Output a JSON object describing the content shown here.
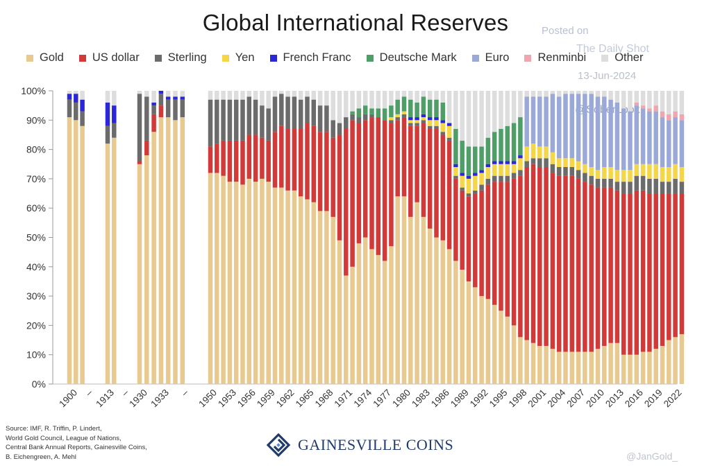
{
  "header": {
    "title": "Global International Reserves"
  },
  "watermark": {
    "posted": "Posted on",
    "site": "The Daily Shot",
    "date": "13-Jun-2024",
    "handle": "@SoberLook"
  },
  "footer": {
    "source_lines": [
      "Source: IMF, R. Triffin, P. Lindert,",
      "World Gold Council, League of Nations,",
      "Central Bank Annual Reports, Gainesville Coins,",
      "B. Eichengreen, A. Mehl"
    ],
    "brand": "GAINESVILLE COINS",
    "credit": "@JanGold_"
  },
  "colors": {
    "Gold": "#e8c98f",
    "US dollar": "#d23a3a",
    "Sterling": "#6b6b6b",
    "Yen": "#f4d648",
    "French Franc": "#2c27d6",
    "Deutsche Mark": "#4f9e68",
    "Euro": "#9aa9d8",
    "Renminbi": "#f0a6ae",
    "Other": "#dddddd",
    "brand": "#1f3a6d"
  },
  "chart_data": {
    "type": "bar",
    "stacked": true,
    "title": "Global International Reserves",
    "xlabel": "",
    "ylabel": "",
    "ylim": [
      0,
      100
    ],
    "y_ticks": [
      "0%",
      "10%",
      "20%",
      "30%",
      "40%",
      "50%",
      "60%",
      "70%",
      "80%",
      "90%",
      "100%"
    ],
    "x_tick_labels": [
      "1900",
      "–",
      "1913",
      "–",
      "1930",
      "1933",
      "–",
      "1950",
      "1953",
      "1956",
      "1959",
      "1962",
      "1965",
      "1968",
      "1971",
      "1974",
      "1977",
      "1980",
      "1983",
      "1986",
      "1989",
      "1992",
      "1995",
      "1998",
      "2001",
      "2004",
      "2007",
      "2010",
      "2013",
      "2016",
      "2019",
      "2022"
    ],
    "legend": [
      "Gold",
      "US dollar",
      "Sterling",
      "Yen",
      "French Franc",
      "Deutsche Mark",
      "Euro",
      "Renminbi",
      "Other"
    ],
    "legend_position": "top",
    "categories": [
      "1899",
      "1900",
      "1901",
      "1912",
      "1913",
      "1929",
      "1930",
      "1931",
      "1932",
      "1933",
      "1934",
      "1935",
      "1950",
      "1951",
      "1952",
      "1953",
      "1954",
      "1955",
      "1956",
      "1957",
      "1958",
      "1959",
      "1960",
      "1961",
      "1962",
      "1963",
      "1964",
      "1965",
      "1966",
      "1967",
      "1968",
      "1969",
      "1970",
      "1971",
      "1972",
      "1973",
      "1974",
      "1975",
      "1976",
      "1977",
      "1978",
      "1979",
      "1980",
      "1981",
      "1982",
      "1983",
      "1984",
      "1985",
      "1986",
      "1987",
      "1988",
      "1989",
      "1990",
      "1991",
      "1992",
      "1993",
      "1994",
      "1995",
      "1996",
      "1997",
      "1998",
      "1999",
      "2000",
      "2001",
      "2002",
      "2003",
      "2004",
      "2005",
      "2006",
      "2007",
      "2008",
      "2009",
      "2010",
      "2011",
      "2012",
      "2013",
      "2014",
      "2015",
      "2016",
      "2017",
      "2018",
      "2019",
      "2020",
      "2021",
      "2022",
      "2023"
    ],
    "series": [
      {
        "name": "Gold",
        "values": [
          91,
          90,
          88,
          82,
          84,
          75,
          78,
          86,
          91,
          91,
          90,
          91,
          72,
          72,
          71,
          69,
          69,
          68,
          70,
          69,
          70,
          69,
          67,
          67,
          66,
          66,
          64,
          63,
          62,
          59,
          59,
          57,
          49,
          37,
          40,
          48,
          50,
          46,
          44,
          42,
          47,
          64,
          64,
          57,
          62,
          57,
          53,
          50,
          49,
          46,
          42,
          39,
          35,
          33,
          30,
          29,
          27,
          25,
          23,
          20,
          16,
          15,
          14,
          13,
          13,
          12,
          11,
          11,
          11,
          11,
          11,
          11,
          12,
          13,
          14,
          14,
          10,
          10,
          10,
          11,
          11,
          12,
          13,
          15,
          16,
          17
        ]
      },
      {
        "name": "US dollar",
        "values": [
          0,
          0,
          0,
          0,
          0,
          1,
          5,
          6,
          4,
          0,
          0,
          0,
          9,
          10,
          12,
          14,
          14,
          15,
          15,
          16,
          14,
          14,
          19,
          21,
          21,
          21,
          23,
          26,
          26,
          27,
          27,
          27,
          36,
          50,
          50,
          41,
          40,
          45,
          47,
          48,
          42,
          26,
          27,
          31,
          26,
          32,
          34,
          37,
          36,
          37,
          28,
          27,
          29,
          32,
          36,
          39,
          42,
          44,
          46,
          50,
          55,
          59,
          61,
          61,
          61,
          60,
          60,
          60,
          60,
          59,
          58,
          57,
          55,
          54,
          53,
          52,
          55,
          55,
          56,
          55,
          54,
          53,
          52,
          50,
          49,
          48
        ]
      },
      {
        "name": "Sterling",
        "values": [
          6,
          6,
          5,
          6,
          5,
          23,
          15,
          3,
          4,
          6,
          7,
          6,
          16,
          15,
          14,
          14,
          14,
          14,
          13,
          12,
          11,
          11,
          12,
          11,
          11,
          11,
          10,
          9,
          9,
          9,
          9,
          6,
          4,
          4,
          2,
          2,
          2,
          1,
          0,
          0,
          1,
          1,
          1,
          1,
          1,
          1,
          1,
          1,
          1,
          1,
          1,
          1,
          1,
          1,
          2,
          2,
          2,
          2,
          2,
          2,
          2,
          2,
          2,
          3,
          3,
          3,
          3,
          3,
          3,
          3,
          3,
          3,
          3,
          3,
          3,
          3,
          4,
          4,
          5,
          5,
          5,
          5,
          4,
          4,
          5,
          4
        ]
      },
      {
        "name": "Yen",
        "values": [
          0,
          0,
          0,
          0,
          0,
          0,
          0,
          0,
          0,
          0,
          0,
          0,
          0,
          0,
          0,
          0,
          0,
          0,
          0,
          0,
          0,
          0,
          0,
          0,
          0,
          0,
          0,
          0,
          0,
          0,
          0,
          0,
          0,
          0,
          0,
          0,
          0,
          0,
          0,
          0,
          1,
          1,
          1,
          1,
          1,
          1,
          2,
          2,
          3,
          4,
          3,
          4,
          5,
          5,
          4,
          4,
          4,
          4,
          4,
          3,
          4,
          5,
          5,
          4,
          4,
          4,
          3,
          3,
          3,
          3,
          3,
          3,
          3,
          4,
          4,
          4,
          4,
          4,
          4,
          4,
          5,
          5,
          5,
          5,
          5,
          5
        ]
      },
      {
        "name": "French Franc",
        "values": [
          2,
          3,
          4,
          8,
          6,
          0,
          0,
          1,
          1,
          1,
          1,
          1,
          0,
          0,
          0,
          0,
          0,
          0,
          0,
          0,
          0,
          0,
          0,
          0,
          0,
          0,
          0,
          0,
          0,
          0,
          0,
          0,
          0,
          0,
          0,
          0,
          0,
          0,
          0,
          0,
          0,
          0,
          0,
          1,
          1,
          1,
          1,
          1,
          1,
          1,
          1,
          1,
          1,
          1,
          1,
          1,
          1,
          1,
          1,
          1,
          1,
          0,
          0,
          0,
          0,
          0,
          0,
          0,
          0,
          0,
          0,
          0,
          0,
          0,
          0,
          0,
          0,
          0,
          0,
          0,
          0,
          0,
          0,
          0,
          0,
          0
        ]
      },
      {
        "name": "Deutsche Mark",
        "values": [
          0,
          0,
          0,
          0,
          0,
          0,
          0,
          0,
          0,
          0,
          0,
          0,
          0,
          0,
          0,
          0,
          0,
          0,
          0,
          0,
          0,
          0,
          0,
          0,
          0,
          0,
          0,
          0,
          0,
          0,
          0,
          0,
          0,
          0,
          1,
          3,
          3,
          2,
          3,
          4,
          4,
          5,
          5,
          6,
          5,
          6,
          6,
          6,
          6,
          0,
          12,
          11,
          10,
          9,
          8,
          9,
          10,
          11,
          12,
          13,
          13,
          0,
          0,
          0,
          0,
          0,
          0,
          0,
          0,
          0,
          0,
          0,
          0,
          0,
          0,
          0,
          0,
          0,
          0,
          0,
          0,
          0,
          0,
          0,
          0,
          0
        ]
      },
      {
        "name": "Euro",
        "values": [
          0,
          0,
          0,
          0,
          0,
          0,
          0,
          0,
          0,
          0,
          0,
          0,
          0,
          0,
          0,
          0,
          0,
          0,
          0,
          0,
          0,
          0,
          0,
          0,
          0,
          0,
          0,
          0,
          0,
          0,
          0,
          0,
          0,
          0,
          0,
          0,
          0,
          0,
          0,
          0,
          0,
          0,
          0,
          0,
          0,
          0,
          0,
          0,
          0,
          0,
          0,
          0,
          0,
          0,
          0,
          0,
          0,
          0,
          0,
          0,
          0,
          17,
          16,
          17,
          17,
          20,
          21,
          22,
          22,
          23,
          24,
          25,
          25,
          24,
          23,
          23,
          21,
          20,
          20,
          19,
          18,
          18,
          17,
          16,
          16,
          16
        ]
      },
      {
        "name": "Renminbi",
        "values": [
          0,
          0,
          0,
          0,
          0,
          0,
          0,
          0,
          0,
          0,
          0,
          0,
          0,
          0,
          0,
          0,
          0,
          0,
          0,
          0,
          0,
          0,
          0,
          0,
          0,
          0,
          0,
          0,
          0,
          0,
          0,
          0,
          0,
          0,
          0,
          0,
          0,
          0,
          0,
          0,
          0,
          0,
          0,
          0,
          0,
          0,
          0,
          0,
          0,
          0,
          0,
          0,
          0,
          0,
          0,
          0,
          0,
          0,
          0,
          0,
          0,
          0,
          0,
          0,
          0,
          0,
          0,
          0,
          0,
          0,
          0,
          0,
          0,
          0,
          0,
          0,
          0,
          0,
          1,
          1,
          1,
          2,
          2,
          2,
          2,
          2
        ]
      },
      {
        "name": "Other",
        "values": [
          1,
          1,
          3,
          4,
          5,
          1,
          2,
          4,
          0,
          2,
          2,
          2,
          3,
          3,
          3,
          3,
          3,
          3,
          2,
          3,
          5,
          6,
          2,
          1,
          2,
          2,
          3,
          2,
          3,
          5,
          5,
          10,
          11,
          9,
          7,
          6,
          5,
          6,
          6,
          6,
          5,
          3,
          2,
          3,
          4,
          2,
          3,
          3,
          4,
          11,
          13,
          17,
          19,
          19,
          19,
          16,
          14,
          13,
          12,
          11,
          9,
          2,
          2,
          2,
          2,
          1,
          2,
          1,
          1,
          1,
          1,
          1,
          2,
          2,
          3,
          4,
          6,
          7,
          4,
          5,
          6,
          5,
          7,
          8,
          7,
          8
        ]
      }
    ]
  }
}
